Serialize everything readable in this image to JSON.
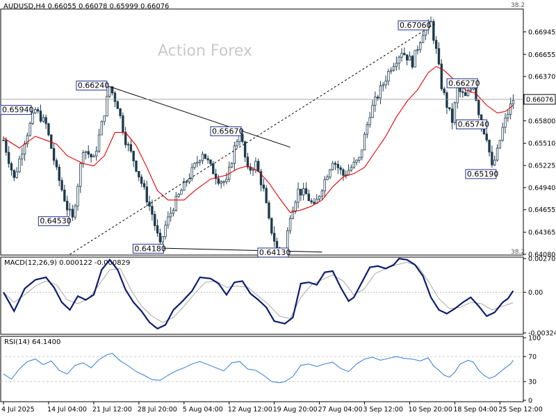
{
  "chart_data": [
    {
      "type": "line",
      "panel": "price",
      "header": "AUDUSD,H4  0.66055 0.66078 0.65999 0.66076",
      "watermark": "Action Forex",
      "corner_top": "38.2",
      "corner_bottom": "38.2",
      "ylim": [
        0.6408,
        0.6723
      ],
      "y_ticks": [
        "0.66945",
        "0.66655",
        "0.66370",
        "0.66080",
        "0.65800",
        "0.65510",
        "0.65225",
        "0.64940",
        "0.64655",
        "0.64365",
        "0.64080"
      ],
      "y_tick_values": [
        0.66945,
        0.66655,
        0.6637,
        0.6608,
        0.658,
        0.6551,
        0.65225,
        0.6494,
        0.64655,
        0.64365,
        0.6408
      ],
      "current_price": "0.66076",
      "current_value": 0.66076,
      "x_ticks": [
        "4 Jul 2025",
        "14 Jul 04:00",
        "21 Jul 12:00",
        "28 Jul 20:00",
        "5 Aug 04:00",
        "12 Aug 12:00",
        "19 Aug 20:00",
        "27 Aug 04:00",
        "3 Sep 12:00",
        "10 Sep 20:00",
        "18 Sep 04:00",
        "25 Sep 12:00"
      ],
      "x_tick_bars": [
        0,
        17,
        34,
        51,
        68,
        85,
        102,
        119,
        136,
        153,
        170,
        187
      ],
      "close_path": [
        [
          0,
          0.6555
        ],
        [
          4,
          0.6505
        ],
        [
          8,
          0.6555
        ],
        [
          12,
          0.6594
        ],
        [
          16,
          0.6575
        ],
        [
          20,
          0.6515
        ],
        [
          24,
          0.6468
        ],
        [
          26,
          0.6453
        ],
        [
          30,
          0.6545
        ],
        [
          34,
          0.653
        ],
        [
          37,
          0.6575
        ],
        [
          40,
          0.6624
        ],
        [
          43,
          0.66
        ],
        [
          46,
          0.6555
        ],
        [
          49,
          0.653
        ],
        [
          52,
          0.65
        ],
        [
          56,
          0.646
        ],
        [
          59,
          0.6418
        ],
        [
          61,
          0.6445
        ],
        [
          64,
          0.647
        ],
        [
          67,
          0.649
        ],
        [
          71,
          0.6515
        ],
        [
          75,
          0.654
        ],
        [
          78,
          0.652
        ],
        [
          81,
          0.6505
        ],
        [
          84,
          0.65
        ],
        [
          87,
          0.6545
        ],
        [
          89,
          0.6567
        ],
        [
          92,
          0.6515
        ],
        [
          95,
          0.6525
        ],
        [
          98,
          0.649
        ],
        [
          100,
          0.645
        ],
        [
          103,
          0.6415
        ],
        [
          106,
          0.6413
        ],
        [
          108,
          0.646
        ],
        [
          111,
          0.649
        ],
        [
          114,
          0.6485
        ],
        [
          117,
          0.6468
        ],
        [
          120,
          0.6495
        ],
        [
          124,
          0.653
        ],
        [
          128,
          0.651
        ],
        [
          131,
          0.652
        ],
        [
          134,
          0.653
        ],
        [
          138,
          0.659
        ],
        [
          142,
          0.662
        ],
        [
          146,
          0.665
        ],
        [
          150,
          0.667
        ],
        [
          154,
          0.6655
        ],
        [
          158,
          0.6695
        ],
        [
          161,
          0.6706
        ],
        [
          163,
          0.667
        ],
        [
          165,
          0.6625
        ],
        [
          167,
          0.66
        ],
        [
          169,
          0.658
        ],
        [
          171,
          0.662
        ],
        [
          174,
          0.661
        ],
        [
          177,
          0.6627
        ],
        [
          180,
          0.6574
        ],
        [
          182,
          0.656
        ],
        [
          184,
          0.6519
        ],
        [
          186,
          0.654
        ],
        [
          188,
          0.657
        ],
        [
          190,
          0.659
        ],
        [
          192,
          0.66076
        ]
      ],
      "ma_path": [
        [
          0,
          0.6558
        ],
        [
          6,
          0.6545
        ],
        [
          12,
          0.656
        ],
        [
          16,
          0.6555
        ],
        [
          20,
          0.655
        ],
        [
          24,
          0.6535
        ],
        [
          30,
          0.6525
        ],
        [
          34,
          0.6522
        ],
        [
          38,
          0.6535
        ],
        [
          42,
          0.6565
        ],
        [
          46,
          0.6565
        ],
        [
          50,
          0.6548
        ],
        [
          54,
          0.652
        ],
        [
          58,
          0.649
        ],
        [
          62,
          0.6478
        ],
        [
          68,
          0.6478
        ],
        [
          72,
          0.649
        ],
        [
          78,
          0.6505
        ],
        [
          84,
          0.651
        ],
        [
          88,
          0.6518
        ],
        [
          92,
          0.6522
        ],
        [
          96,
          0.6515
        ],
        [
          100,
          0.65
        ],
        [
          104,
          0.648
        ],
        [
          108,
          0.6462
        ],
        [
          112,
          0.6465
        ],
        [
          116,
          0.647
        ],
        [
          120,
          0.6478
        ],
        [
          124,
          0.6495
        ],
        [
          128,
          0.6508
        ],
        [
          132,
          0.6512
        ],
        [
          136,
          0.652
        ],
        [
          140,
          0.654
        ],
        [
          144,
          0.656
        ],
        [
          148,
          0.6585
        ],
        [
          152,
          0.6605
        ],
        [
          156,
          0.662
        ],
        [
          160,
          0.6642
        ],
        [
          163,
          0.665
        ],
        [
          166,
          0.6645
        ],
        [
          170,
          0.6632
        ],
        [
          174,
          0.662
        ],
        [
          178,
          0.6615
        ],
        [
          182,
          0.66
        ],
        [
          186,
          0.659
        ],
        [
          189,
          0.6592
        ],
        [
          192,
          0.66
        ]
      ],
      "annotations": [
        {
          "label": "0.65940",
          "bar": 0,
          "value": 0.6594
        },
        {
          "label": "0.64530",
          "bar": 26,
          "value": 0.6453
        },
        {
          "label": "0.66240",
          "bar": 40,
          "value": 0.6624
        },
        {
          "label": "0.64180",
          "bar": 59,
          "value": 0.6418
        },
        {
          "label": "0.65670",
          "bar": 89,
          "value": 0.6567
        },
        {
          "label": "0.64130",
          "bar": 106,
          "value": 0.6413
        },
        {
          "label": "0.67060",
          "bar": 161,
          "value": 0.6706
        },
        {
          "label": "0.66270",
          "bar": 177,
          "value": 0.6627
        },
        {
          "label": "0.65740",
          "bar": 180,
          "value": 0.6574
        },
        {
          "label": "0.65190",
          "bar": 184,
          "value": 0.6519
        }
      ],
      "trendlines": [
        {
          "style": "solid",
          "from": [
            40,
            0.6624
          ],
          "to": [
            108,
            0.6546
          ]
        },
        {
          "style": "solid",
          "from": [
            59,
            0.6416
          ],
          "to": [
            120,
            0.6411
          ]
        },
        {
          "style": "dashed",
          "from": [
            25,
            0.6408
          ],
          "to": [
            163,
            0.6706
          ]
        }
      ],
      "colors": {
        "candle": "#1f3b4d",
        "ma": "#e00000",
        "label_border": "#1f2f8a",
        "label_text": "#1f2f8a"
      }
    },
    {
      "type": "line",
      "panel": "macd",
      "header": "MACD(12,26,9) 0.000122 -0.000829",
      "y_ticks": [
        "0.002702",
        "0.00",
        "-0.003241"
      ],
      "y_tick_values": [
        0.002702,
        0.0,
        -0.003241
      ],
      "ylim": [
        -0.003241,
        0.002702
      ],
      "macd_path": [
        [
          0,
          0.0
        ],
        [
          4,
          -0.0015
        ],
        [
          8,
          0.0003
        ],
        [
          12,
          0.001
        ],
        [
          16,
          0.0012
        ],
        [
          19,
          0.0004
        ],
        [
          22,
          -0.0008
        ],
        [
          25,
          -0.0014
        ],
        [
          28,
          -0.0003
        ],
        [
          31,
          -0.0006
        ],
        [
          34,
          -0.0002
        ],
        [
          37,
          0.0018
        ],
        [
          40,
          0.0026
        ],
        [
          43,
          0.0018
        ],
        [
          46,
          0.0002
        ],
        [
          49,
          -0.0008
        ],
        [
          52,
          -0.0015
        ],
        [
          55,
          -0.0024
        ],
        [
          58,
          -0.0029
        ],
        [
          61,
          -0.0026
        ],
        [
          64,
          -0.0014
        ],
        [
          67,
          -0.0008
        ],
        [
          71,
          0.0001
        ],
        [
          74,
          0.0012
        ],
        [
          78,
          0.0011
        ],
        [
          81,
          0.0007
        ],
        [
          84,
          -0.0002
        ],
        [
          87,
          0.0008
        ],
        [
          90,
          0.0009
        ],
        [
          93,
          -0.0001
        ],
        [
          96,
          -0.0006
        ],
        [
          99,
          -0.0012
        ],
        [
          102,
          -0.0023
        ],
        [
          106,
          -0.0025
        ],
        [
          109,
          -0.002
        ],
        [
          112,
          0.0007
        ],
        [
          115,
          0.0008
        ],
        [
          118,
          0.0006
        ],
        [
          121,
          0.0016
        ],
        [
          124,
          0.0017
        ],
        [
          127,
          0.0004
        ],
        [
          130,
          -0.0007
        ],
        [
          132,
          -0.0004
        ],
        [
          135,
          0.0008
        ],
        [
          138,
          0.002
        ],
        [
          141,
          0.0021
        ],
        [
          144,
          0.0019
        ],
        [
          147,
          0.0022
        ],
        [
          149,
          0.0027
        ],
        [
          152,
          0.0026
        ],
        [
          155,
          0.0022
        ],
        [
          158,
          0.0013
        ],
        [
          161,
          -0.0004
        ],
        [
          164,
          -0.0014
        ],
        [
          167,
          -0.0017
        ],
        [
          170,
          -0.0013
        ],
        [
          173,
          -0.0008
        ],
        [
          176,
          -0.0004
        ],
        [
          179,
          -0.0011
        ],
        [
          182,
          -0.0019
        ],
        [
          185,
          -0.0016
        ],
        [
          188,
          -0.0008
        ],
        [
          190,
          -0.0005
        ],
        [
          192,
          0.00012
        ]
      ],
      "signal_path": [
        [
          0,
          0.0
        ],
        [
          4,
          -0.0008
        ],
        [
          8,
          -0.0002
        ],
        [
          12,
          0.0005
        ],
        [
          16,
          0.0009
        ],
        [
          20,
          0.0006
        ],
        [
          24,
          -0.0006
        ],
        [
          28,
          -0.0009
        ],
        [
          32,
          -0.0005
        ],
        [
          36,
          0.0006
        ],
        [
          40,
          0.0018
        ],
        [
          44,
          0.0019
        ],
        [
          48,
          0.0002
        ],
        [
          52,
          -0.0011
        ],
        [
          56,
          -0.0019
        ],
        [
          60,
          -0.0024
        ],
        [
          64,
          -0.002
        ],
        [
          68,
          -0.0011
        ],
        [
          72,
          -0.0001
        ],
        [
          76,
          0.0008
        ],
        [
          80,
          0.0009
        ],
        [
          84,
          0.0004
        ],
        [
          88,
          0.0005
        ],
        [
          92,
          0.0004
        ],
        [
          96,
          -0.0003
        ],
        [
          100,
          -0.001
        ],
        [
          104,
          -0.0019
        ],
        [
          108,
          -0.0021
        ],
        [
          112,
          -0.0004
        ],
        [
          116,
          0.0006
        ],
        [
          120,
          0.001
        ],
        [
          124,
          0.0014
        ],
        [
          128,
          0.0009
        ],
        [
          132,
          -0.0002
        ],
        [
          136,
          0.0003
        ],
        [
          140,
          0.0015
        ],
        [
          144,
          0.0019
        ],
        [
          148,
          0.0022
        ],
        [
          152,
          0.0024
        ],
        [
          156,
          0.0021
        ],
        [
          160,
          0.0009
        ],
        [
          164,
          -0.0005
        ],
        [
          168,
          -0.0013
        ],
        [
          172,
          -0.0012
        ],
        [
          176,
          -0.0008
        ],
        [
          180,
          -0.0009
        ],
        [
          184,
          -0.0014
        ],
        [
          188,
          -0.0011
        ],
        [
          192,
          -0.00083
        ]
      ],
      "colors": {
        "macd": "#0d1b6e",
        "signal": "#a8a8a8",
        "zero": "#b0b0b0"
      }
    },
    {
      "type": "line",
      "panel": "rsi",
      "header": "RSI(14) 64.1400",
      "y_ticks": [
        "100",
        "70",
        "30",
        "0"
      ],
      "y_tick_values": [
        100,
        70,
        30,
        0
      ],
      "ylim": [
        0,
        100
      ],
      "rsi_path": [
        [
          0,
          42
        ],
        [
          3,
          34
        ],
        [
          6,
          50
        ],
        [
          9,
          62
        ],
        [
          12,
          66
        ],
        [
          15,
          57
        ],
        [
          18,
          63
        ],
        [
          21,
          48
        ],
        [
          24,
          42
        ],
        [
          27,
          56
        ],
        [
          30,
          60
        ],
        [
          33,
          52
        ],
        [
          36,
          65
        ],
        [
          39,
          73
        ],
        [
          41,
          75
        ],
        [
          44,
          63
        ],
        [
          47,
          55
        ],
        [
          50,
          46
        ],
        [
          53,
          40
        ],
        [
          56,
          33
        ],
        [
          59,
          32
        ],
        [
          62,
          40
        ],
        [
          65,
          47
        ],
        [
          68,
          52
        ],
        [
          71,
          58
        ],
        [
          74,
          62
        ],
        [
          77,
          57
        ],
        [
          80,
          52
        ],
        [
          83,
          47
        ],
        [
          86,
          60
        ],
        [
          89,
          62
        ],
        [
          92,
          50
        ],
        [
          95,
          48
        ],
        [
          98,
          40
        ],
        [
          101,
          30
        ],
        [
          104,
          28
        ],
        [
          106,
          30
        ],
        [
          109,
          38
        ],
        [
          112,
          56
        ],
        [
          115,
          58
        ],
        [
          118,
          54
        ],
        [
          121,
          58
        ],
        [
          124,
          61
        ],
        [
          127,
          51
        ],
        [
          130,
          46
        ],
        [
          133,
          58
        ],
        [
          136,
          66
        ],
        [
          139,
          69
        ],
        [
          142,
          64
        ],
        [
          145,
          67
        ],
        [
          148,
          70
        ],
        [
          151,
          67
        ],
        [
          154,
          66
        ],
        [
          157,
          63
        ],
        [
          160,
          68
        ],
        [
          162,
          55
        ],
        [
          164,
          48
        ],
        [
          166,
          40
        ],
        [
          168,
          37
        ],
        [
          170,
          45
        ],
        [
          172,
          58
        ],
        [
          175,
          64
        ],
        [
          177,
          61
        ],
        [
          179,
          48
        ],
        [
          181,
          40
        ],
        [
          183,
          35
        ],
        [
          185,
          38
        ],
        [
          187,
          45
        ],
        [
          189,
          52
        ],
        [
          191,
          58
        ],
        [
          192,
          64.14
        ]
      ],
      "colors": {
        "rsi": "#2f7bd6",
        "levels": "#b8b8b8"
      }
    }
  ]
}
